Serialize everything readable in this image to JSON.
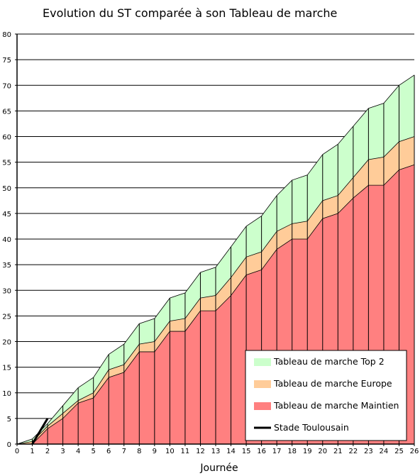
{
  "chart_data": {
    "type": "area",
    "title": "Evolution du ST comparée à son Tableau de marche",
    "xlabel": "Journée",
    "ylabel": "",
    "xlim": [
      0,
      26
    ],
    "ylim": [
      0,
      80
    ],
    "x_ticks": [
      0,
      1,
      2,
      3,
      4,
      5,
      6,
      7,
      8,
      9,
      10,
      11,
      12,
      13,
      14,
      15,
      16,
      17,
      18,
      19,
      20,
      21,
      22,
      23,
      24,
      25,
      26
    ],
    "y_ticks": [
      0,
      5,
      10,
      15,
      20,
      25,
      30,
      35,
      40,
      45,
      50,
      55,
      60,
      65,
      70,
      75,
      80
    ],
    "grid": "horizontal",
    "legend_position": "bottom-right",
    "x": [
      0,
      1,
      2,
      3,
      4,
      5,
      6,
      7,
      8,
      9,
      10,
      11,
      12,
      13,
      14,
      15,
      16,
      17,
      18,
      19,
      20,
      21,
      22,
      23,
      24,
      25,
      26
    ],
    "series": [
      {
        "name": "Tableau de marche Top 2",
        "kind": "area",
        "color": "#ccffcc",
        "values": [
          0,
          1,
          4,
          7.5,
          11,
          13,
          17.5,
          19.5,
          23.5,
          24.5,
          28.5,
          29.5,
          33.5,
          34.5,
          38.5,
          42.5,
          44.5,
          48.5,
          51.5,
          52.5,
          56.5,
          58.5,
          62,
          65.5,
          66.5,
          70,
          72
        ]
      },
      {
        "name": "Tableau de marche Europe",
        "kind": "area",
        "color": "#ffcc99",
        "values": [
          0,
          0.5,
          3.5,
          6,
          8.5,
          10,
          14.5,
          15.5,
          19.5,
          20,
          24,
          24.5,
          28.5,
          29,
          32.5,
          36.5,
          37.5,
          41.5,
          43,
          43.5,
          47.5,
          48.5,
          52,
          55.5,
          56,
          59,
          60
        ]
      },
      {
        "name": "Tableau de marche Maintien",
        "kind": "area",
        "color": "#ff8080",
        "values": [
          0,
          0,
          3,
          5,
          8,
          9,
          13,
          14,
          18,
          18,
          22,
          22,
          26,
          26,
          29,
          33,
          34,
          38,
          40,
          40,
          44,
          45,
          48,
          50.5,
          50.5,
          53.5,
          54.5
        ]
      },
      {
        "name": "Stade Toulousain",
        "kind": "line",
        "color": "#000000",
        "x": [
          1,
          2
        ],
        "values": [
          0,
          5
        ]
      }
    ]
  }
}
